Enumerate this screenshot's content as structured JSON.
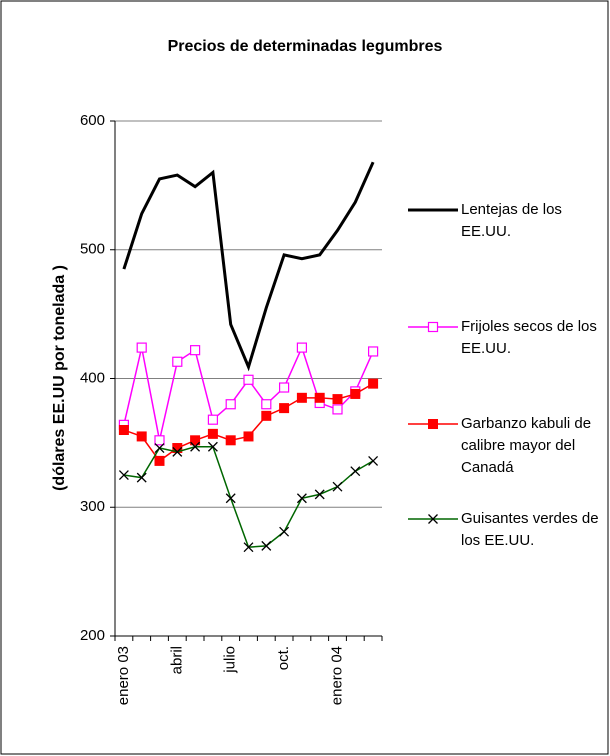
{
  "chart_data": {
    "type": "line",
    "title": "Precios de determinadas legumbres",
    "y_label": "(dólares EE.UU por tonelada )",
    "categories": [
      "enero 03",
      null,
      null,
      "abril",
      null,
      null,
      "julio",
      null,
      null,
      "oct.",
      null,
      null,
      "enero 04",
      null,
      null
    ],
    "series": [
      {
        "name": "Lentejas de los EE.UU.",
        "color": "#000000",
        "marker": "none",
        "values": [
          485,
          528,
          555,
          558,
          549,
          560,
          442,
          409,
          455,
          496,
          493,
          496,
          515,
          537,
          568
        ]
      },
      {
        "name": "Frijoles secos de los EE.UU.",
        "color": "#ff00ff",
        "marker": "open-square",
        "values": [
          364,
          424,
          352,
          413,
          422,
          368,
          380,
          399,
          380,
          393,
          424,
          381,
          376,
          390,
          421
        ]
      },
      {
        "name": "Garbanzo kabuli de calibre mayor del Canadá",
        "color": "#ff0000",
        "marker": "filled-square",
        "values": [
          360,
          355,
          336,
          346,
          352,
          357,
          352,
          355,
          371,
          377,
          385,
          385,
          384,
          388,
          396
        ]
      },
      {
        "name": "Guisantes verdes de los EE.UU.",
        "color": "#006600",
        "marker": "x",
        "values": [
          325,
          323,
          346,
          343,
          347,
          347,
          307,
          269,
          270,
          281,
          307,
          310,
          316,
          328,
          336
        ]
      }
    ],
    "ylim": [
      200,
      600
    ],
    "yticks": [
      200,
      300,
      400,
      500,
      600
    ],
    "grid": true,
    "legend": "right"
  }
}
